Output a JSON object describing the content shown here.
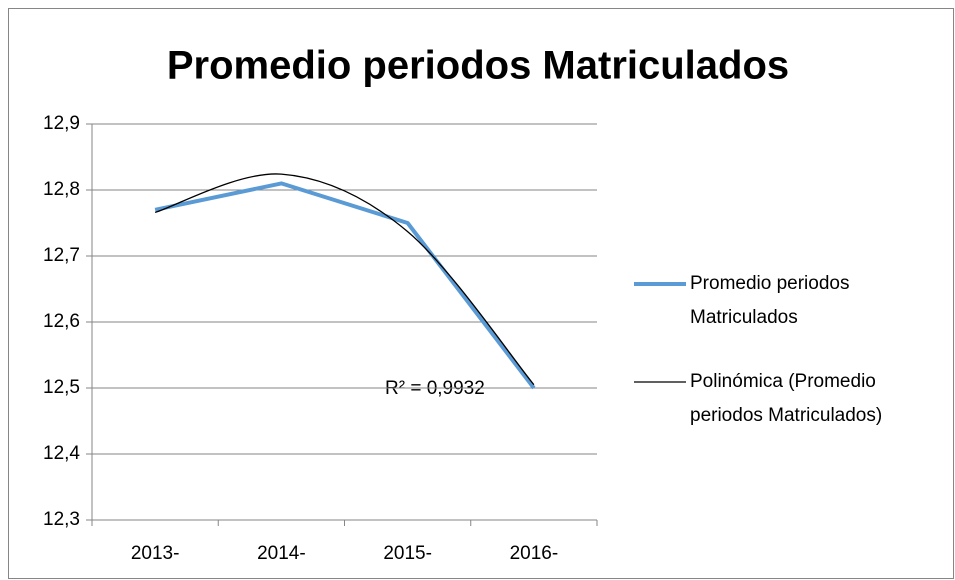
{
  "chart_data": {
    "type": "line",
    "title": "Promedio periodos Matriculados",
    "categories": [
      "2013-",
      "2014-",
      "2015-",
      "2016-"
    ],
    "series": [
      {
        "name": "Promedio periodos Matriculados",
        "color": "#5b9bd5",
        "values": [
          12.77,
          12.81,
          12.75,
          12.5
        ]
      },
      {
        "name": "Polinómica (Promedio periodos Matriculados)",
        "color": "#000000",
        "values": [
          12.766,
          12.824,
          12.737,
          12.505
        ],
        "trendline": true
      }
    ],
    "annotations": [
      {
        "text": "R² = 0,9932"
      }
    ],
    "ylim": [
      12.3,
      12.9
    ],
    "yticks": [
      {
        "value": 12.3,
        "label": "12,3"
      },
      {
        "value": 12.4,
        "label": "12,4"
      },
      {
        "value": 12.5,
        "label": "12,5"
      },
      {
        "value": 12.6,
        "label": "12,6"
      },
      {
        "value": 12.7,
        "label": "12,7"
      },
      {
        "value": 12.8,
        "label": "12,8"
      },
      {
        "value": 12.9,
        "label": "12,9"
      }
    ],
    "grid": true,
    "legend": "right"
  }
}
